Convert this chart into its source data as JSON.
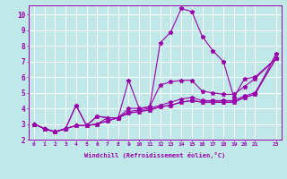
{
  "xlabel": "Windchill (Refroidissement éolien,°C)",
  "ylabel": "",
  "xlim": [
    -0.5,
    23.5
  ],
  "ylim": [
    2,
    10.6
  ],
  "xtick_vals": [
    0,
    1,
    2,
    3,
    4,
    5,
    6,
    7,
    8,
    9,
    10,
    11,
    12,
    13,
    14,
    15,
    16,
    17,
    18,
    19,
    20,
    21,
    23
  ],
  "xtick_labels": [
    "0",
    "1",
    "2",
    "3",
    "4",
    "5",
    "6",
    "7",
    "8",
    "9",
    "10",
    "11",
    "12",
    "13",
    "14",
    "15",
    "16",
    "17",
    "18",
    "19",
    "20",
    "21",
    "23"
  ],
  "yticks": [
    2,
    3,
    4,
    5,
    6,
    7,
    8,
    9,
    10
  ],
  "background_color": "#c0e8e8",
  "line_color": "#9900aa",
  "grid_color": "#ffffff",
  "series": [
    {
      "x": [
        0,
        1,
        2,
        3,
        4,
        5,
        6,
        7,
        8,
        9,
        10,
        11,
        12,
        13,
        14,
        15,
        16,
        17,
        18,
        19,
        20,
        21,
        23
      ],
      "y": [
        3.0,
        2.7,
        2.5,
        2.7,
        4.2,
        2.9,
        3.5,
        3.4,
        3.4,
        5.8,
        4.0,
        4.1,
        8.2,
        8.9,
        10.4,
        10.2,
        8.6,
        7.7,
        7.0,
        4.7,
        5.9,
        6.0,
        7.2
      ]
    },
    {
      "x": [
        0,
        1,
        2,
        3,
        4,
        5,
        6,
        7,
        8,
        9,
        10,
        11,
        12,
        13,
        14,
        15,
        16,
        17,
        18,
        19,
        20,
        21,
        23
      ],
      "y": [
        3.0,
        2.7,
        2.5,
        2.7,
        4.2,
        2.9,
        3.5,
        3.4,
        3.4,
        4.0,
        4.0,
        4.1,
        5.5,
        5.7,
        5.8,
        5.8,
        5.1,
        5.0,
        4.9,
        4.9,
        5.4,
        5.9,
        7.2
      ]
    },
    {
      "x": [
        0,
        1,
        2,
        3,
        4,
        5,
        6,
        7,
        8,
        9,
        10,
        11,
        12,
        13,
        14,
        15,
        16,
        17,
        18,
        19,
        20,
        21,
        23
      ],
      "y": [
        3.0,
        2.7,
        2.5,
        2.7,
        2.9,
        2.9,
        3.0,
        3.4,
        3.4,
        3.8,
        3.9,
        4.0,
        4.2,
        4.4,
        4.6,
        4.7,
        4.5,
        4.5,
        4.5,
        4.5,
        4.8,
        5.0,
        7.2
      ]
    },
    {
      "x": [
        0,
        1,
        2,
        3,
        4,
        5,
        6,
        7,
        8,
        9,
        10,
        11,
        12,
        13,
        14,
        15,
        16,
        17,
        18,
        19,
        20,
        21,
        23
      ],
      "y": [
        3.0,
        2.7,
        2.5,
        2.7,
        2.9,
        2.9,
        3.0,
        3.2,
        3.4,
        3.7,
        3.8,
        3.9,
        4.1,
        4.2,
        4.4,
        4.5,
        4.4,
        4.4,
        4.4,
        4.4,
        4.7,
        4.9,
        7.5
      ]
    },
    {
      "x": [
        0,
        1,
        2,
        3,
        4,
        5,
        6,
        7,
        8,
        9,
        10,
        11,
        12,
        13,
        14,
        15,
        16,
        17,
        18,
        19,
        20,
        21,
        23
      ],
      "y": [
        3.0,
        2.7,
        2.5,
        2.7,
        2.9,
        2.9,
        3.0,
        3.2,
        3.4,
        3.7,
        3.8,
        3.9,
        4.1,
        4.2,
        4.4,
        4.5,
        4.4,
        4.4,
        4.4,
        4.4,
        4.7,
        4.9,
        7.2
      ]
    }
  ]
}
